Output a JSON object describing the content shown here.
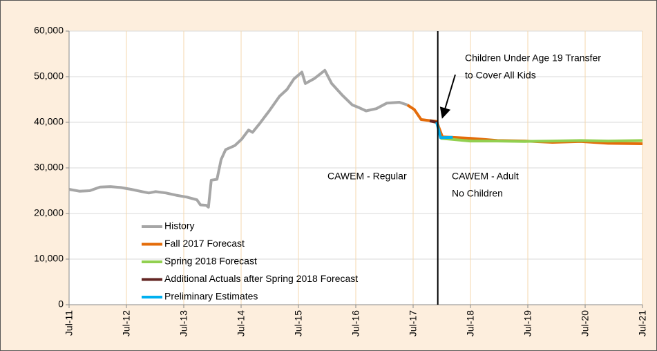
{
  "chart_data": {
    "type": "line",
    "xlim": [
      2011.5,
      2021.5
    ],
    "xticks": [
      {
        "value": 2011.5,
        "label": "Jul-11"
      },
      {
        "value": 2012.5,
        "label": "Jul-12"
      },
      {
        "value": 2013.5,
        "label": "Jul-13"
      },
      {
        "value": 2014.5,
        "label": "Jul-14"
      },
      {
        "value": 2015.5,
        "label": "Jul-15"
      },
      {
        "value": 2016.5,
        "label": "Jul-16"
      },
      {
        "value": 2017.5,
        "label": "Jul-17"
      },
      {
        "value": 2018.5,
        "label": "Jul-18"
      },
      {
        "value": 2019.5,
        "label": "Jul-19"
      },
      {
        "value": 2020.5,
        "label": "Jul-20"
      },
      {
        "value": 2021.5,
        "label": "Jul-21"
      }
    ],
    "ylim": [
      0,
      60000
    ],
    "yticks": [
      0,
      {
        "value": 10000,
        "label": "10,000"
      },
      {
        "value": 20000,
        "label": "20,000"
      },
      {
        "value": 30000,
        "label": "30,000"
      },
      {
        "value": 40000,
        "label": "40,000"
      },
      {
        "value": 50000,
        "label": "50,000"
      },
      {
        "value": 60000,
        "label": "60,000"
      }
    ],
    "grid": true,
    "legend": "lower left",
    "vline": 2017.93,
    "annotations": {
      "transfer": [
        "Children Under Age 19 Transfer",
        "to Cover All Kids"
      ],
      "regular": [
        "CAWEM - Regular"
      ],
      "adult": [
        "CAWEM - Adult",
        "No Children"
      ]
    },
    "series": [
      {
        "name": "History",
        "color": "#a6a6a6",
        "x": [
          2011.5,
          2011.68,
          2011.86,
          2012.04,
          2012.22,
          2012.4,
          2012.58,
          2012.77,
          2012.89,
          2013.01,
          2013.19,
          2013.37,
          2013.55,
          2013.73,
          2013.79,
          2013.89,
          2013.93,
          2013.98,
          2014.08,
          2014.15,
          2014.23,
          2014.39,
          2014.51,
          2014.63,
          2014.7,
          2014.81,
          2014.99,
          2015.17,
          2015.3,
          2015.42,
          2015.56,
          2015.62,
          2015.78,
          2015.96,
          2016.08,
          2016.26,
          2016.44,
          2016.56,
          2016.68,
          2016.86,
          2017.04,
          2017.26,
          2017.4
        ],
        "values": [
          25300,
          24900,
          25000,
          25800,
          25900,
          25700,
          25300,
          24800,
          24500,
          24800,
          24500,
          24000,
          23600,
          23000,
          21900,
          21800,
          21400,
          27300,
          27500,
          31800,
          34000,
          34900,
          36300,
          38300,
          37800,
          39500,
          42500,
          45700,
          47200,
          49500,
          51000,
          48500,
          49600,
          51400,
          48500,
          46000,
          43800,
          43200,
          42500,
          43000,
          44200,
          44400,
          43800
        ]
      },
      {
        "name": "Fall 2017 Forecast",
        "color": "#e46c0a",
        "x": [
          2017.4,
          2017.52,
          2017.64,
          2017.77,
          2017.91,
          2018.01,
          2018.49,
          2018.97,
          2019.45,
          2019.93,
          2020.42,
          2020.9,
          2021.5
        ],
        "values": [
          43800,
          42800,
          40600,
          40400,
          40200,
          36800,
          36500,
          36000,
          35900,
          35600,
          35800,
          35400,
          35300
        ]
      },
      {
        "name": "Spring 2018 Forecast",
        "color": "#92d050",
        "x": [
          2017.98,
          2018.49,
          2018.97,
          2019.45,
          2019.93,
          2020.42,
          2020.9,
          2021.5
        ],
        "values": [
          36500,
          35900,
          35900,
          35800,
          35900,
          36000,
          35900,
          36000
        ]
      },
      {
        "name": "Additional Actuals after Spring 2018 Forecast",
        "color": "#632523",
        "x": [
          2017.79,
          2017.91
        ],
        "values": [
          40300,
          40000
        ]
      },
      {
        "name": "Preliminary Estimates",
        "color": "#00b0f0",
        "x": [
          2017.91,
          2017.98,
          2018.19
        ],
        "values": [
          40000,
          36600,
          36700
        ]
      }
    ]
  }
}
